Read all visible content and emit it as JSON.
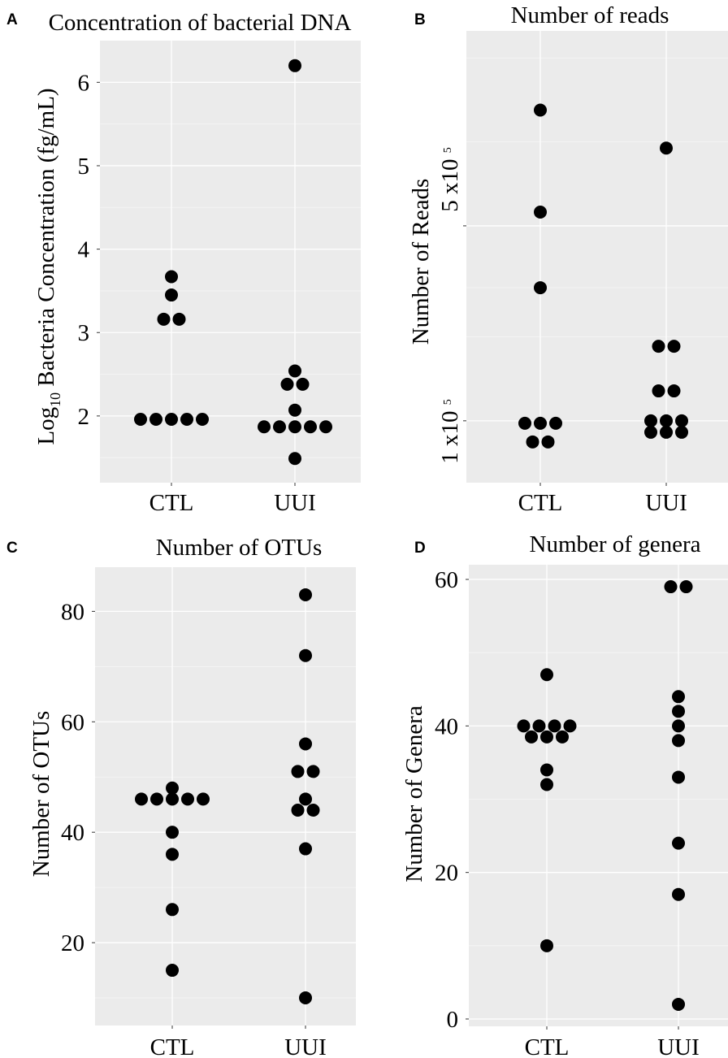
{
  "chart_data": [
    {
      "id": "A",
      "type": "scatter",
      "panel_letter": "A",
      "title": "Concentration of bacterial DNA",
      "ylabel": "Log10 Bacteria Concentration (fg/mL)",
      "ylabel_parts": {
        "pre": "Log",
        "sub": "10",
        "post": " Bacteria Concentration (fg/mL)"
      },
      "categories": [
        "CTL",
        "UUI"
      ],
      "ylim": [
        1.2,
        6.5
      ],
      "yticks": [
        2,
        3,
        4,
        5,
        6
      ],
      "ytick_labels": [
        "2",
        "3",
        "4",
        "5",
        "6"
      ],
      "series": [
        {
          "category": "CTL",
          "values": [
            3.67,
            3.45,
            3.16,
            3.16,
            1.96,
            1.96,
            1.96,
            1.96,
            1.96
          ]
        },
        {
          "category": "UUI",
          "values": [
            6.2,
            2.54,
            2.38,
            2.38,
            2.07,
            1.87,
            1.87,
            1.87,
            1.87,
            1.87,
            1.49
          ]
        }
      ]
    },
    {
      "id": "B",
      "type": "scatter",
      "panel_letter": "B",
      "title": "Number of reads",
      "ylabel": "Number of Reads",
      "categories": [
        "CTL",
        "UUI"
      ],
      "ylim": [
        60000,
        2500000
      ],
      "yscale": "log",
      "yticks": [
        100000,
        500000
      ],
      "ytick_labels": [
        "1 x10 5",
        "5 x10 5"
      ],
      "ytick_parts": [
        {
          "base": "1 x10 ",
          "exp": "5"
        },
        {
          "base": "5 x10 ",
          "exp": "5"
        }
      ],
      "series": [
        {
          "category": "CTL",
          "values": [
            1300000,
            560000,
            300000,
            98000,
            98000,
            98000,
            84000,
            84000
          ]
        },
        {
          "category": "UUI",
          "values": [
            950000,
            185000,
            185000,
            128000,
            128000,
            100000,
            100000,
            100000,
            91000,
            91000,
            91000
          ]
        }
      ]
    },
    {
      "id": "C",
      "type": "scatter",
      "panel_letter": "C",
      "title": "Number of OTUs",
      "ylabel": "Number of OTUs",
      "categories": [
        "CTL",
        "UUI"
      ],
      "ylim": [
        5,
        88
      ],
      "yticks": [
        20,
        40,
        60,
        80
      ],
      "ytick_labels": [
        "20",
        "40",
        "60",
        "80"
      ],
      "series": [
        {
          "category": "CTL",
          "values": [
            48,
            46,
            46,
            46,
            46,
            46,
            40,
            36,
            26,
            15
          ]
        },
        {
          "category": "UUI",
          "values": [
            83,
            72,
            56,
            51,
            51,
            46,
            44,
            44,
            37,
            10
          ]
        }
      ]
    },
    {
      "id": "D",
      "type": "scatter",
      "panel_letter": "D",
      "title": "Number of genera",
      "ylabel": "Number of Genera",
      "categories": [
        "CTL",
        "UUI"
      ],
      "ylim": [
        -1,
        62
      ],
      "yticks": [
        0,
        20,
        40,
        60
      ],
      "ytick_labels": [
        "0",
        "20",
        "40",
        "60"
      ],
      "series": [
        {
          "category": "CTL",
          "values": [
            47,
            40,
            40,
            40,
            40,
            38.5,
            38.5,
            38.5,
            34,
            32,
            10
          ]
        },
        {
          "category": "UUI",
          "values": [
            59,
            59,
            44,
            42,
            40,
            38,
            33,
            24,
            17,
            2
          ]
        }
      ]
    }
  ]
}
